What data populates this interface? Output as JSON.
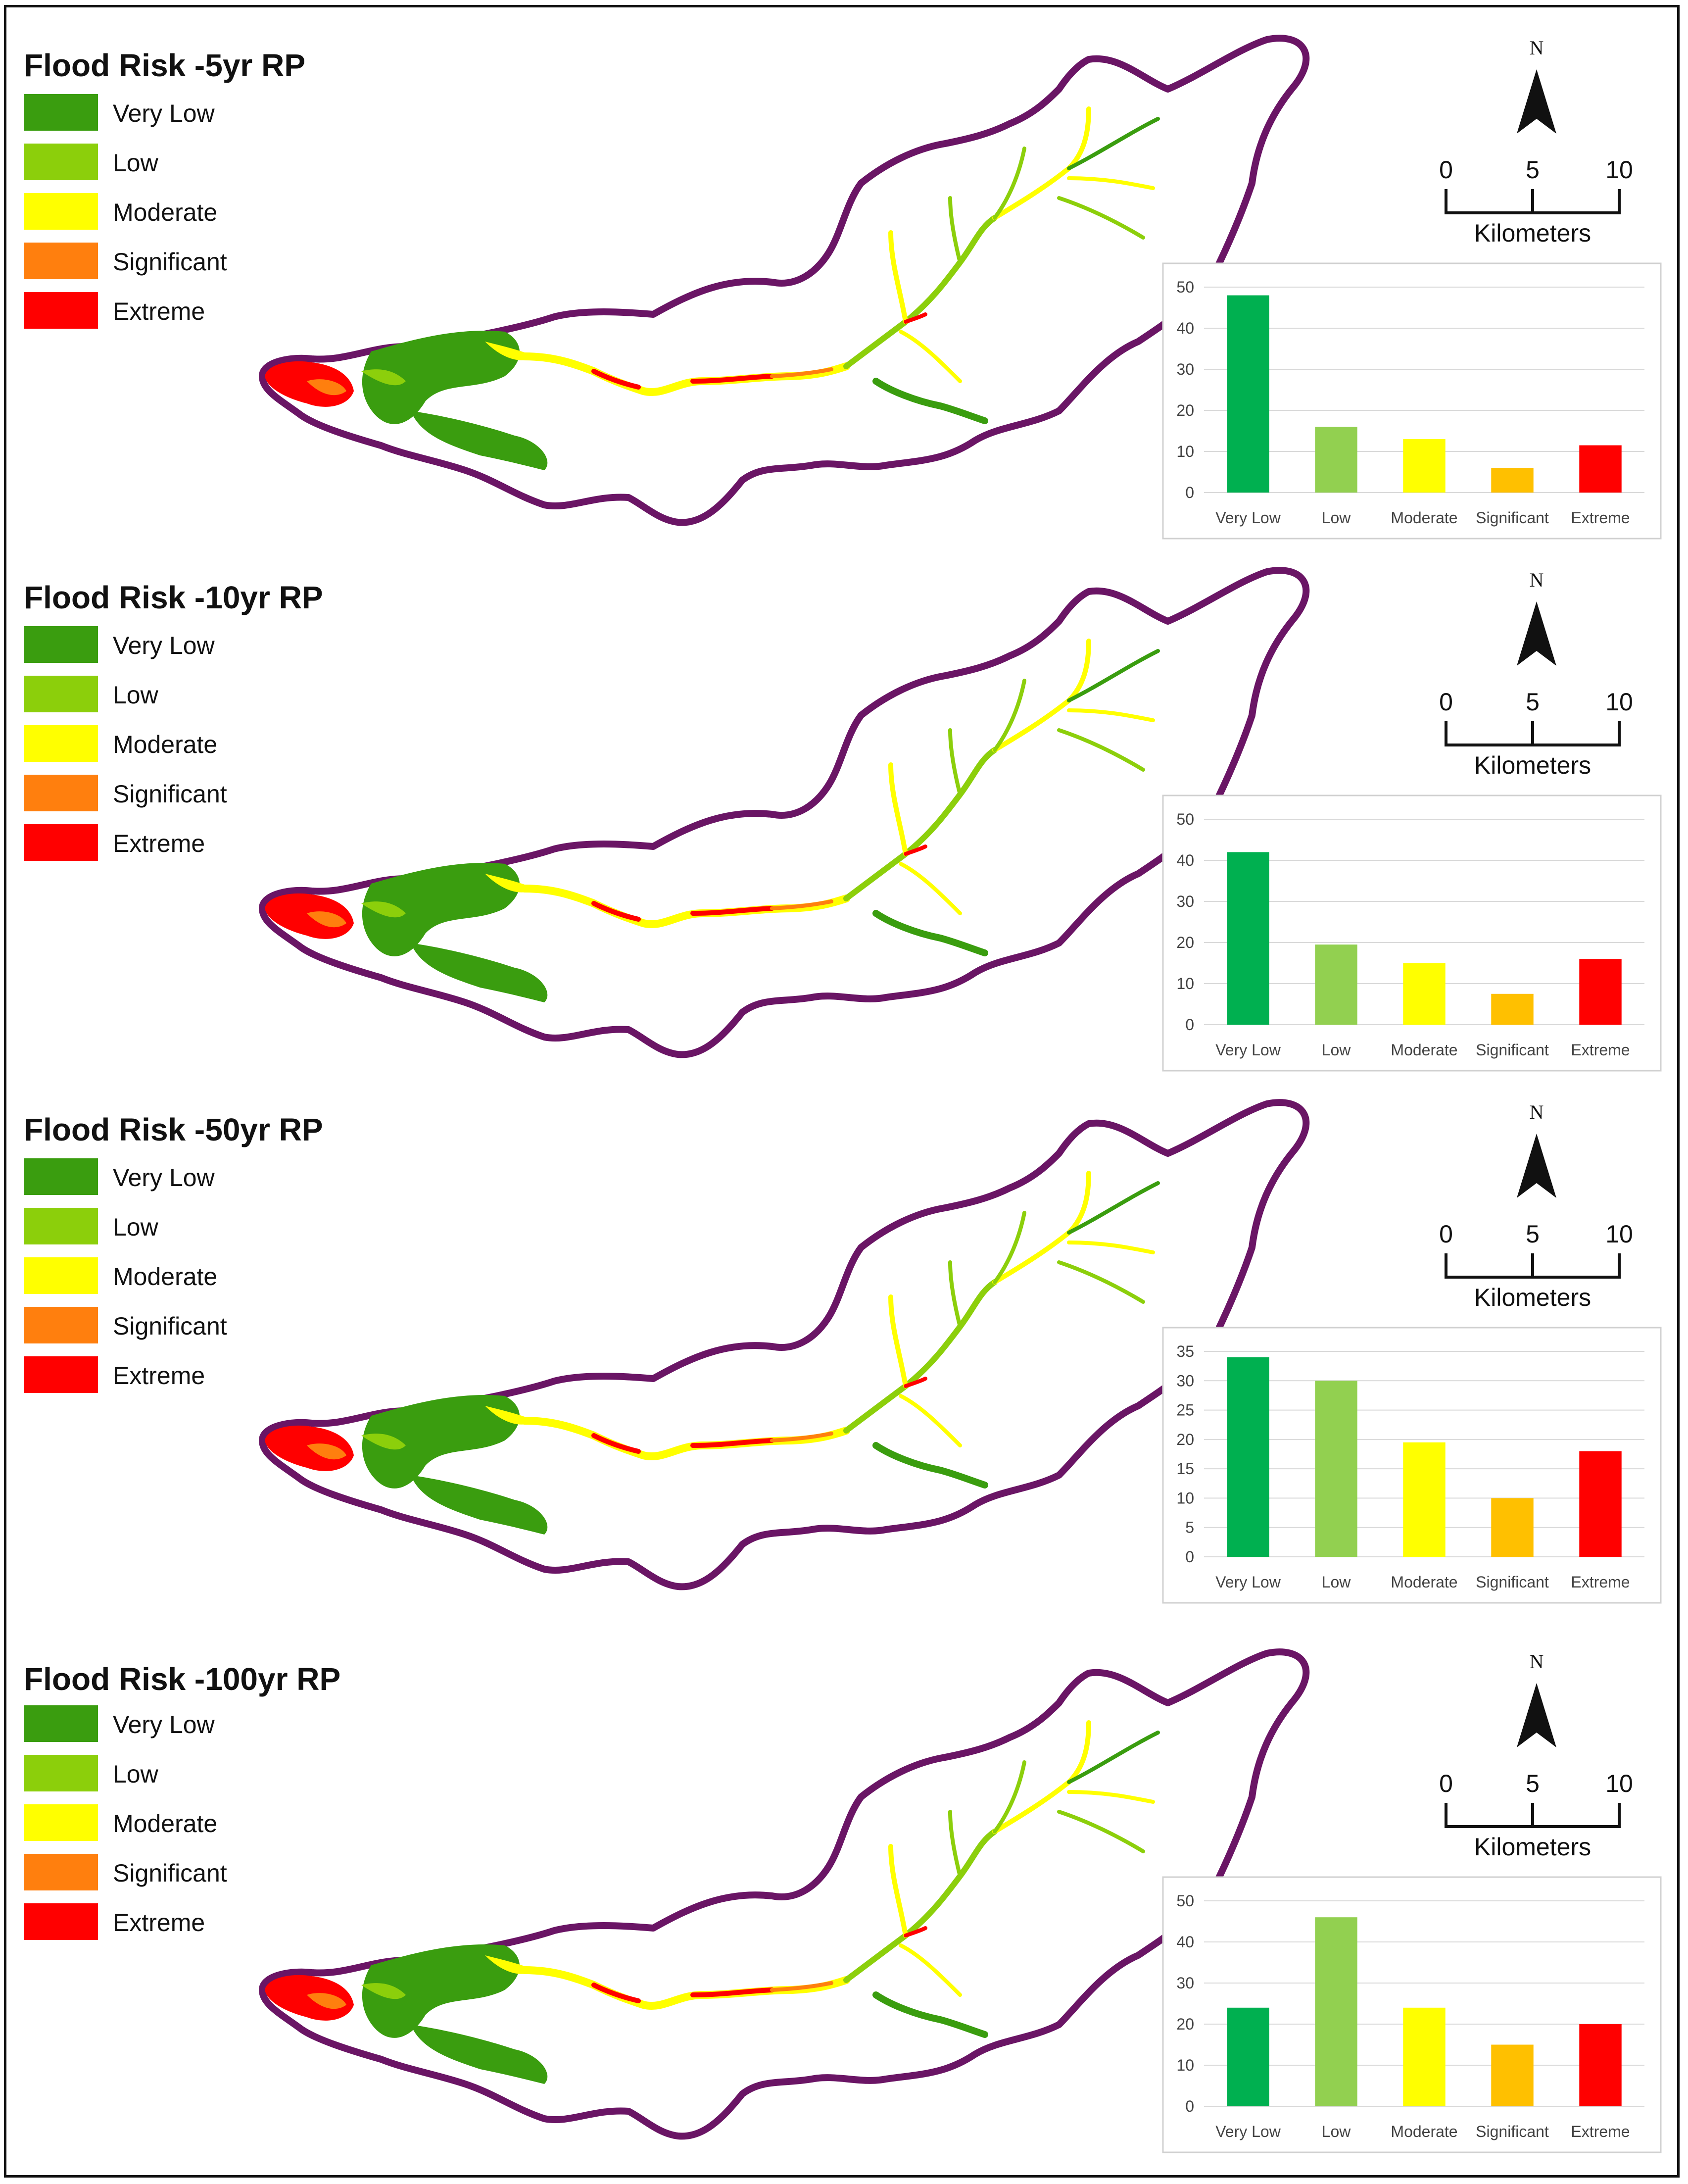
{
  "legend_labels": [
    "Very Low",
    "Low",
    "Moderate",
    "Significant",
    "Extreme"
  ],
  "colors": {
    "map_very_low": "#3a9d0f",
    "map_low": "#8ccf0b",
    "map_moderate": "#ffff00",
    "map_significant": "#ff7f0e",
    "map_extreme": "#ff0000",
    "bar_very_low": "#00b050",
    "bar_low": "#92d050",
    "bar_moderate": "#ffff00",
    "bar_significant": "#ffc000",
    "bar_extreme": "#ff0000",
    "boundary": "#6a1565"
  },
  "north_label": "N",
  "scale": {
    "ticks": [
      "0",
      "5",
      "10"
    ],
    "unit": "Kilometers"
  },
  "panels": [
    {
      "title": "Flood Risk -5yr RP"
    },
    {
      "title": "Flood Risk -10yr RP"
    },
    {
      "title": "Flood Risk -50yr RP"
    },
    {
      "title": "Flood Risk -100yr RP"
    }
  ],
  "chart_data": [
    {
      "type": "bar",
      "title": "Flood Risk -5yr RP",
      "categories": [
        "Very Low",
        "Low",
        "Moderate",
        "Significant",
        "Extreme"
      ],
      "values": [
        48,
        16,
        13,
        6,
        11.5
      ],
      "ylim": [
        0,
        50
      ],
      "yticks": [
        "0",
        "10",
        "20",
        "30",
        "40",
        "50"
      ]
    },
    {
      "type": "bar",
      "title": "Flood Risk -10yr RP",
      "categories": [
        "Very Low",
        "Low",
        "Moderate",
        "Significant",
        "Extreme"
      ],
      "values": [
        42,
        19.5,
        15,
        7.5,
        16
      ],
      "ylim": [
        0,
        50
      ],
      "yticks": [
        "0",
        "10",
        "20",
        "30",
        "40",
        "50"
      ]
    },
    {
      "type": "bar",
      "title": "Flood Risk -50yr RP",
      "categories": [
        "Very Low",
        "Low",
        "Moderate",
        "Significant",
        "Extreme"
      ],
      "values": [
        34,
        30,
        19.5,
        10,
        18
      ],
      "ylim": [
        0,
        35
      ],
      "yticks": [
        "0",
        "5",
        "10",
        "15",
        "20",
        "25",
        "30",
        "35"
      ]
    },
    {
      "type": "bar",
      "title": "Flood Risk -100yr RP",
      "categories": [
        "Very Low",
        "Low",
        "Moderate",
        "Significant",
        "Extreme"
      ],
      "values": [
        24,
        46,
        24,
        15,
        20
      ],
      "ylim": [
        0,
        50
      ],
      "yticks": [
        "0",
        "10",
        "20",
        "30",
        "40",
        "50"
      ]
    }
  ]
}
